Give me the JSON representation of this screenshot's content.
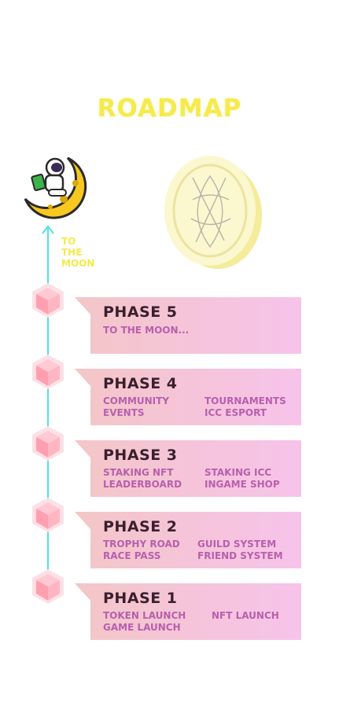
{
  "title": "ROADMAP",
  "moon_label_lines": [
    "TO",
    "THE",
    "MOON"
  ],
  "accent_colors": {
    "title": "#f5ea4e",
    "line": "#52e3df",
    "card": "#f7c3e8",
    "text": "#b85fae"
  },
  "phases": [
    {
      "label": "PHASE 5",
      "items": [
        "TO THE MOON..."
      ]
    },
    {
      "label": "PHASE 4",
      "items": [
        "COMMUNITY",
        "TOURNAMENTS",
        "EVENTS",
        "ICC ESPORT"
      ]
    },
    {
      "label": "PHASE 3",
      "items": [
        "STAKING NFT",
        "STAKING ICC",
        "LEADERBOARD",
        "INGAME SHOP"
      ]
    },
    {
      "label": "PHASE 2",
      "items": [
        "TROPHY ROAD",
        "GUILD SYSTEM",
        "RACE PASS",
        "FRIEND SYSTEM"
      ]
    },
    {
      "label": "PHASE 1",
      "items": [
        "TOKEN LAUNCH",
        "NFT LAUNCH",
        "GAME LAUNCH"
      ]
    }
  ]
}
